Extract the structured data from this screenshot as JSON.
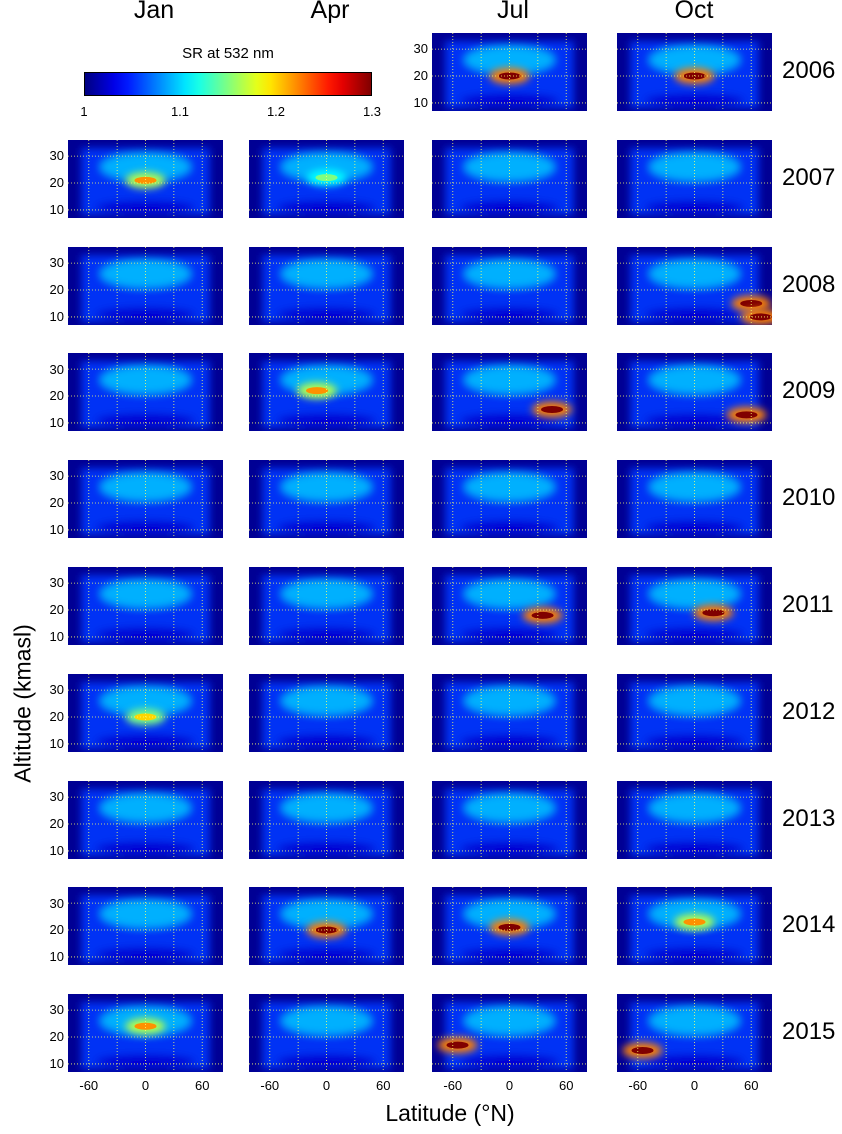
{
  "chart_data": {
    "type": "heatmap",
    "colormap": "jet",
    "months": [
      "Jan",
      "Apr",
      "Jul",
      "Oct"
    ],
    "years": [
      "2006",
      "2007",
      "2008",
      "2009",
      "2010",
      "2011",
      "2012",
      "2013",
      "2014",
      "2015"
    ],
    "missing_panels": [
      {
        "year": "2006",
        "month": "Jan"
      },
      {
        "year": "2006",
        "month": "Apr"
      }
    ],
    "xlabel": "Latitude (°N)",
    "ylabel": "Altitude (kmasl)",
    "xticks": [
      "-60",
      "0",
      "60"
    ],
    "yticks": [
      "30",
      "20",
      "10"
    ],
    "xlim": [
      -82,
      82
    ],
    "ylim": [
      7,
      36
    ],
    "grid": true,
    "colorbar": {
      "label": "SR  at 532 nm",
      "ticks": [
        "1",
        "1.1",
        "1.2",
        "1.3"
      ],
      "range": [
        1,
        1.3
      ]
    },
    "features": [
      {
        "year": "2006",
        "month": "Jul",
        "lat": 0,
        "alt": 20,
        "sr": 1.3
      },
      {
        "year": "2006",
        "month": "Oct",
        "lat": 0,
        "alt": 20,
        "sr": 1.3
      },
      {
        "year": "2007",
        "month": "Jan",
        "lat": 0,
        "alt": 21,
        "sr": 1.22
      },
      {
        "year": "2007",
        "month": "Apr",
        "lat": 0,
        "alt": 22,
        "sr": 1.15
      },
      {
        "year": "2008",
        "month": "Oct",
        "lat": 60,
        "alt": 15,
        "sr": 1.3
      },
      {
        "year": "2008",
        "month": "Oct",
        "lat": 70,
        "alt": 10,
        "sr": 1.3
      },
      {
        "year": "2009",
        "month": "Apr",
        "lat": -10,
        "alt": 22,
        "sr": 1.22
      },
      {
        "year": "2009",
        "month": "Jul",
        "lat": 45,
        "alt": 15,
        "sr": 1.3
      },
      {
        "year": "2009",
        "month": "Oct",
        "lat": 55,
        "alt": 13,
        "sr": 1.3
      },
      {
        "year": "2011",
        "month": "Jul",
        "lat": 35,
        "alt": 18,
        "sr": 1.3
      },
      {
        "year": "2011",
        "month": "Oct",
        "lat": 20,
        "alt": 19,
        "sr": 1.3
      },
      {
        "year": "2012",
        "month": "Jan",
        "lat": 0,
        "alt": 20,
        "sr": 1.2
      },
      {
        "year": "2014",
        "month": "Apr",
        "lat": 0,
        "alt": 20,
        "sr": 1.3
      },
      {
        "year": "2014",
        "month": "Jul",
        "lat": 0,
        "alt": 21,
        "sr": 1.3
      },
      {
        "year": "2014",
        "month": "Oct",
        "lat": 0,
        "alt": 23,
        "sr": 1.22
      },
      {
        "year": "2015",
        "month": "Jan",
        "lat": 0,
        "alt": 24,
        "sr": 1.22
      },
      {
        "year": "2015",
        "month": "Jul",
        "lat": -55,
        "alt": 17,
        "sr": 1.3
      },
      {
        "year": "2015",
        "month": "Oct",
        "lat": -55,
        "alt": 15,
        "sr": 1.3
      }
    ]
  }
}
